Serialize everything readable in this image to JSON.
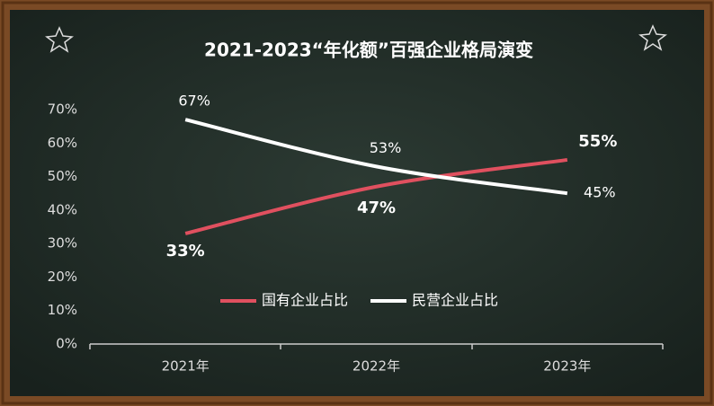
{
  "chart_data": {
    "type": "line",
    "title": "2021-2023“年化额”百强企业格局演变",
    "categories": [
      "2021年",
      "2022年",
      "2023年"
    ],
    "series": [
      {
        "name": "国有企业占比",
        "color": "#e0505f",
        "values": [
          33,
          47,
          55
        ],
        "value_labels": [
          "33%",
          "47%",
          "55%"
        ]
      },
      {
        "name": "民营企业占比",
        "color": "#ffffff",
        "values": [
          67,
          53,
          45
        ],
        "value_labels": [
          "67%",
          "53%",
          "45%"
        ]
      }
    ],
    "ylim": [
      0,
      70
    ],
    "yticks": [
      {
        "value": 0,
        "label": "0%"
      },
      {
        "value": 10,
        "label": "10%"
      },
      {
        "value": 20,
        "label": "20%"
      },
      {
        "value": 30,
        "label": "30%"
      },
      {
        "value": 40,
        "label": "40%"
      },
      {
        "value": 50,
        "label": "50%"
      },
      {
        "value": 60,
        "label": "60%"
      },
      {
        "value": 70,
        "label": "70%"
      }
    ],
    "grid": false,
    "legend": "bottom"
  }
}
